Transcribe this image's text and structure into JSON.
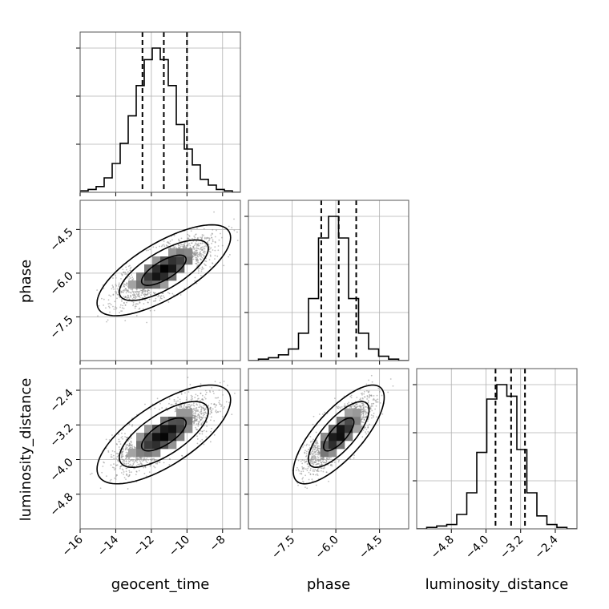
{
  "chart_data": {
    "type": "corner",
    "parameters": [
      "geocent_time",
      "phase",
      "luminosity_distance"
    ],
    "ranges": {
      "geocent_time": [
        -16,
        -7
      ],
      "phase": [
        -9,
        -3.5
      ],
      "luminosity_distance": [
        -5.6,
        -1.9
      ]
    },
    "ticks": {
      "geocent_time": [
        -16,
        -14,
        -12,
        -10,
        -8
      ],
      "phase": [
        -7.5,
        -6.0,
        -4.5
      ],
      "luminosity_distance": [
        -4.8,
        -4.0,
        -3.2,
        -2.4
      ]
    },
    "tick_labels": {
      "geocent_time": [
        "−16",
        "−14",
        "−12",
        "−10",
        "−8"
      ],
      "phase": [
        "−7.5",
        "−6.0",
        "−4.5"
      ],
      "luminosity_distance": [
        "−4.8",
        "−4.0",
        "−3.2",
        "−2.4"
      ]
    },
    "quantiles": {
      "geocent_time": [
        -12.5,
        -11.3,
        -10.0
      ],
      "phase": [
        -6.5,
        -5.9,
        -5.3
      ],
      "luminosity_distance": [
        -3.78,
        -3.42,
        -3.1
      ]
    },
    "histograms": {
      "geocent_time": [
        0.01,
        0.02,
        0.04,
        0.1,
        0.2,
        0.34,
        0.53,
        0.74,
        0.92,
        1.0,
        0.92,
        0.74,
        0.47,
        0.3,
        0.19,
        0.09,
        0.05,
        0.02,
        0.01,
        0.0
      ],
      "phase": [
        0.0,
        0.01,
        0.02,
        0.04,
        0.08,
        0.19,
        0.43,
        0.85,
        1.0,
        0.85,
        0.43,
        0.19,
        0.08,
        0.03,
        0.01,
        0.0
      ],
      "luminosity_distance": [
        0.0,
        0.01,
        0.02,
        0.03,
        0.1,
        0.25,
        0.53,
        0.9,
        1.0,
        0.92,
        0.55,
        0.25,
        0.09,
        0.03,
        0.01,
        0.0
      ]
    },
    "correlations": {
      "phase_vs_geocent_time": {
        "mean": [
          -11.3,
          -5.9
        ],
        "sd": [
          1.25,
          0.52
        ],
        "rho": 0.72
      },
      "luminosity_distance_vs_geocent_time": {
        "mean": [
          -11.3,
          -3.42
        ],
        "sd": [
          1.25,
          0.38
        ],
        "rho": 0.7
      },
      "luminosity_distance_vs_phase": {
        "mean": [
          -5.9,
          -3.42
        ],
        "sd": [
          0.52,
          0.38
        ],
        "rho": 0.75
      }
    },
    "grid": true,
    "contour_levels_sigma": [
      1,
      2,
      3
    ],
    "colors": {
      "points": "#8c8c8c",
      "lines": "#000000",
      "grid": "#b0b0b0"
    }
  }
}
